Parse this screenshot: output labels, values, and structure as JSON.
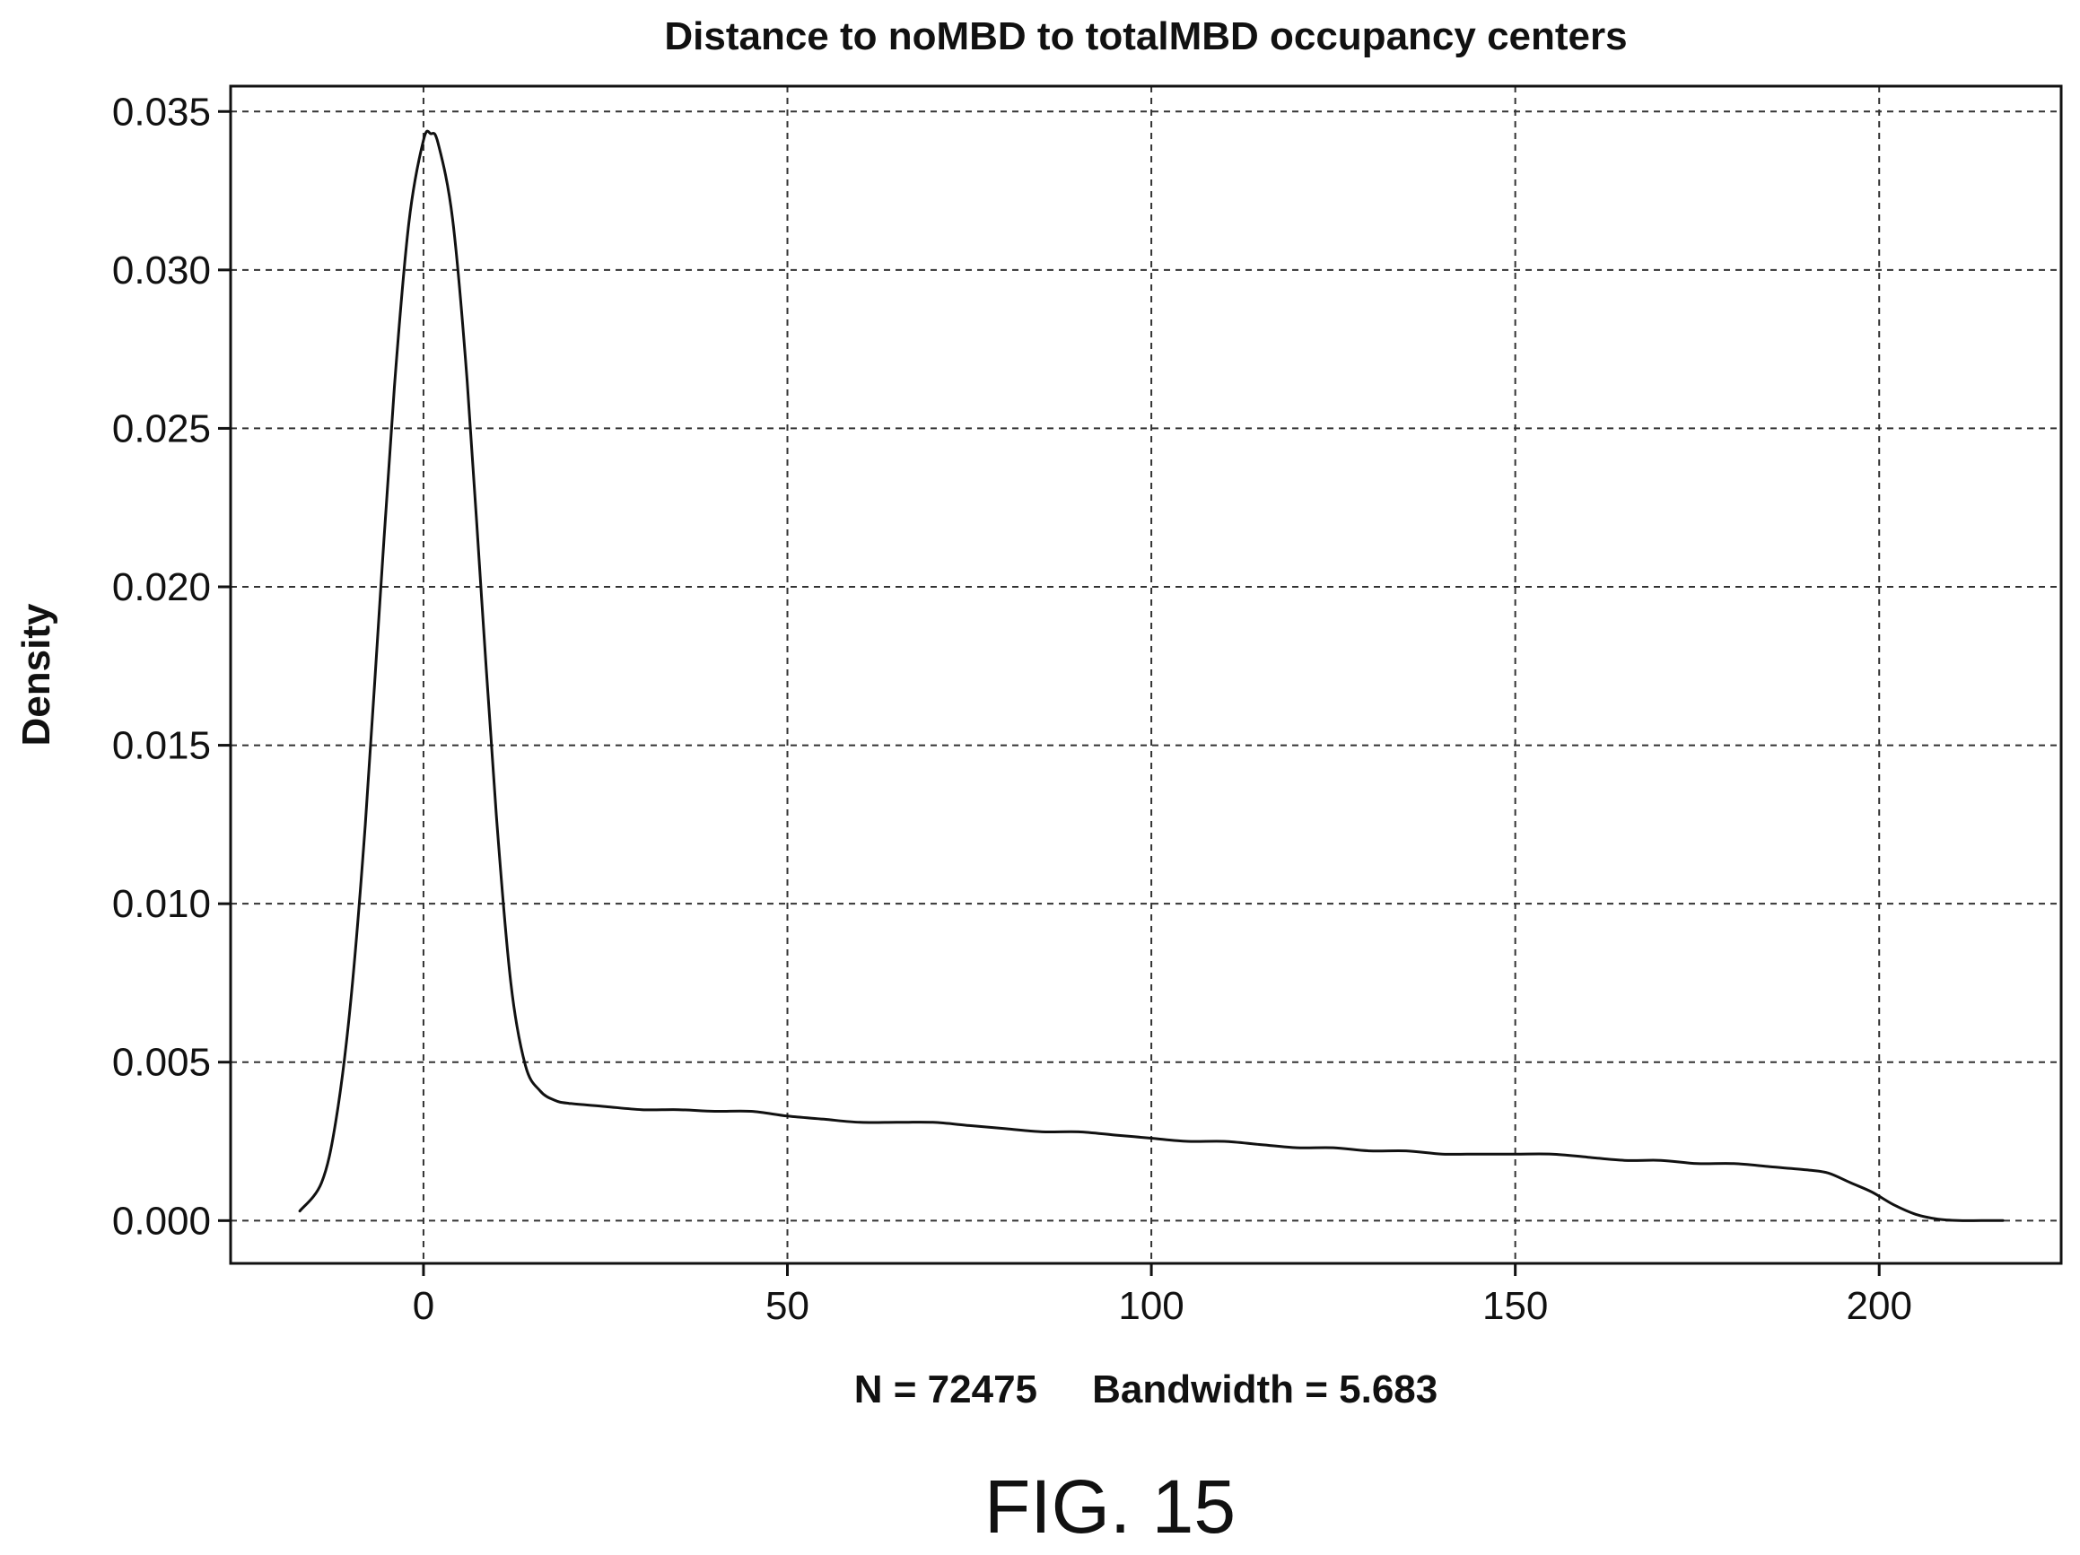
{
  "figure_label": "FIG. 15",
  "chart_data": {
    "type": "line",
    "title": "Distance to noMBD to totalMBD occupancy centers",
    "xlabel": "N = 72475     Bandwidth = 5.683",
    "ylabel": "Density",
    "xlim": [
      -26.5,
      225
    ],
    "ylim": [
      -0.00135,
      0.0358
    ],
    "xticks": [
      0,
      50,
      100,
      150,
      200
    ],
    "xtick_labels": [
      "0",
      "50",
      "100",
      "150",
      "200"
    ],
    "yticks": [
      0.0,
      0.005,
      0.01,
      0.015,
      0.02,
      0.025,
      0.03,
      0.035
    ],
    "ytick_labels": [
      "0.000",
      "0.005",
      "0.010",
      "0.015",
      "0.020",
      "0.025",
      "0.030",
      "0.035"
    ],
    "grid": true,
    "series": [
      {
        "x": [
          -17,
          -14,
          -12,
          -10,
          -8,
          -6,
          -4,
          -2,
          0,
          1,
          2,
          4,
          6,
          8,
          10,
          12,
          14,
          16,
          18,
          20,
          25,
          30,
          35,
          40,
          45,
          50,
          55,
          60,
          65,
          70,
          75,
          80,
          85,
          90,
          95,
          100,
          105,
          110,
          115,
          120,
          125,
          130,
          135,
          140,
          145,
          150,
          155,
          160,
          165,
          170,
          175,
          180,
          185,
          190,
          193,
          196,
          199,
          202,
          205,
          208,
          211,
          214,
          217
        ],
        "y": [
          0.0003,
          0.0012,
          0.0032,
          0.0069,
          0.0125,
          0.0195,
          0.0263,
          0.0315,
          0.0341,
          0.0343,
          0.034,
          0.0316,
          0.0265,
          0.0196,
          0.0128,
          0.0075,
          0.0049,
          0.0041,
          0.0038,
          0.0037,
          0.0036,
          0.0035,
          0.0035,
          0.00345,
          0.00345,
          0.0033,
          0.0032,
          0.0031,
          0.0031,
          0.0031,
          0.003,
          0.0029,
          0.0028,
          0.0028,
          0.0027,
          0.0026,
          0.0025,
          0.0025,
          0.0024,
          0.0023,
          0.0023,
          0.0022,
          0.0022,
          0.0021,
          0.0021,
          0.0021,
          0.0021,
          0.002,
          0.0019,
          0.0019,
          0.0018,
          0.0018,
          0.0017,
          0.0016,
          0.0015,
          0.0012,
          0.0009,
          0.0005,
          0.0002,
          5e-05,
          0.0,
          0.0,
          0.0
        ]
      }
    ]
  }
}
